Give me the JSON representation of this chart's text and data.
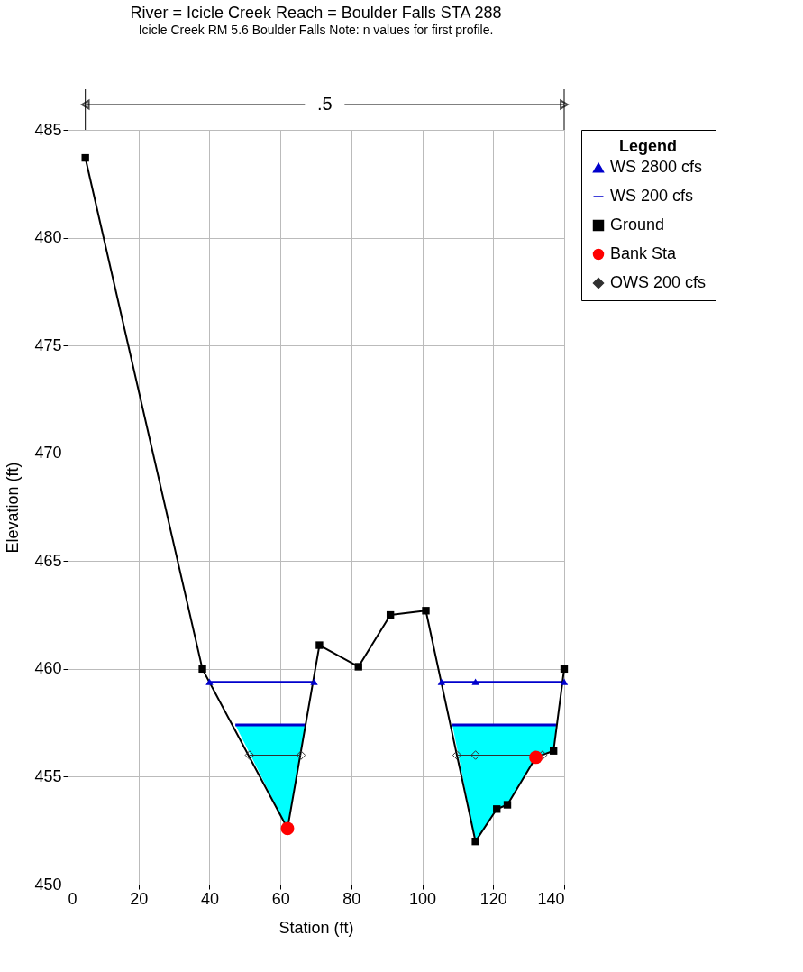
{
  "chart_data": {
    "type": "line",
    "title": "River = Icicle Creek   Reach = Boulder Falls      STA 288",
    "subtitle": "Icicle Creek RM 5.6 Boulder Falls Note: n values for first profile.",
    "xlabel": "Station (ft)",
    "ylabel": "Elevation (ft)",
    "legend_title": "Legend",
    "annotations": [
      ".5"
    ],
    "xlim": [
      0,
      140
    ],
    "xticks": [
      0,
      20,
      40,
      60,
      80,
      100,
      120,
      140
    ],
    "ylim": [
      450,
      485
    ],
    "yticks": [
      450,
      455,
      460,
      465,
      470,
      475,
      480,
      485
    ],
    "grid": true,
    "legend": "top right",
    "line_style": "solid",
    "series": [
      {
        "name": "WS 2800 cfs",
        "color": "#0000cc",
        "marker": "triangle",
        "x": [
          40,
          69.5,
          87,
          105.4,
          115,
          140
        ],
        "values": [
          459.4,
          459.4,
          null,
          459.4,
          459.4,
          459.4
        ]
      },
      {
        "name": "WS 200 cfs",
        "color": "#0000cc",
        "marker": "none",
        "x": [
          47.3,
          62,
          67.1,
          87,
          108.5,
          115,
          121,
          124,
          132,
          137,
          137.7
        ],
        "values": [
          457.4,
          457.4,
          457.4,
          null,
          457.4,
          457.4,
          457.4,
          457.4,
          457.4,
          457.4,
          457.4
        ],
        "lower": [
          457.4,
          452.6,
          457.4,
          null,
          457.4,
          452.0,
          453.5,
          453.7,
          455.9,
          456.2,
          457.4
        ],
        "upper": [
          457.4,
          457.4,
          457.4,
          null,
          457.4,
          457.4,
          457.4,
          457.4,
          457.4,
          457.4,
          457.4
        ]
      },
      {
        "name": "Ground",
        "color": "#000000",
        "marker": "square",
        "x": [
          5,
          38,
          62,
          71,
          82,
          91,
          101,
          115,
          121,
          124,
          132,
          137,
          140
        ],
        "values": [
          483.7,
          460.0,
          452.6,
          461.1,
          460.1,
          462.5,
          462.7,
          452.0,
          453.5,
          453.7,
          455.9,
          456.2,
          460.0
        ]
      },
      {
        "name": "Bank Sta",
        "type": "scatter",
        "color": "#ff0000",
        "marker": "circle",
        "x": [
          62,
          132
        ],
        "values": [
          452.6,
          455.9
        ]
      },
      {
        "name": "OWS 200 cfs",
        "color": "#303030",
        "marker": "diamond",
        "x": [
          51.3,
          65.8,
          87,
          109.8,
          115,
          133.9
        ],
        "values": [
          456.0,
          456.0,
          null,
          456.0,
          456.0,
          456.0
        ]
      }
    ]
  }
}
